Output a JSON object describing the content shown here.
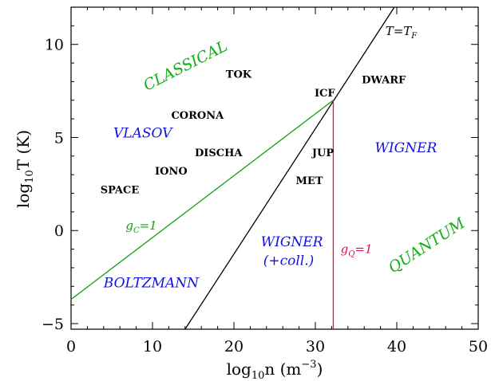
{
  "chart_data": {
    "type": "line",
    "title": "",
    "xlabel": "log",
    "xlabel_sub": "10",
    "xlabel_tail": "n (m",
    "xlabel_sup": "−3",
    "xlabel_close": ")",
    "ylabel": "log",
    "ylabel_sub": "10",
    "ylabel_tail": "T (K)",
    "xlim": [
      0,
      50
    ],
    "ylim": [
      -5.3,
      12
    ],
    "xticks": [
      0,
      10,
      20,
      30,
      40,
      50
    ],
    "yticks": [
      -5,
      0,
      5,
      10
    ],
    "colors": {
      "degeneracy": "#000000",
      "classical_coupling": "#10a010",
      "quantum_coupling": "#e0104a",
      "blue_text": "#1010e0",
      "green_text": "#10b010"
    },
    "series": [
      {
        "key": "degeneracy",
        "name": "",
        "x": [
          14.0,
          39.7
        ],
        "y": [
          -5.3,
          12.0
        ]
      },
      {
        "key": "classical_coupling",
        "name": "",
        "x": [
          0.0,
          32.2
        ],
        "y": [
          -3.7,
          7.0
        ]
      },
      {
        "key": "quantum_coupling",
        "name": "",
        "x": [
          32.2,
          32.2
        ],
        "y": [
          7.0,
          -5.3
        ]
      }
    ],
    "curve_labels": {
      "tf": {
        "main": "T=T",
        "sub": "F",
        "x": 38.6,
        "y": 10.5,
        "color": "#000000"
      },
      "gc": {
        "main": "g",
        "sub": "C",
        "tail": "=1",
        "x": 6.7,
        "y": 0.05,
        "color": "#10a010"
      },
      "gq": {
        "main": "g",
        "sub": "Q",
        "tail": "=1",
        "x": 33.1,
        "y": -1.2,
        "color": "#e0104a"
      }
    },
    "annotations": [
      {
        "text": "TOK",
        "x": 19.0,
        "y": 8.2,
        "style": "black"
      },
      {
        "text": "ICF",
        "x": 29.9,
        "y": 7.2,
        "style": "black"
      },
      {
        "text": "DWARF",
        "x": 35.7,
        "y": 7.9,
        "style": "black"
      },
      {
        "text": "CORONA",
        "x": 12.3,
        "y": 6.0,
        "style": "black"
      },
      {
        "text": "DISCHA",
        "x": 15.2,
        "y": 4.0,
        "style": "black"
      },
      {
        "text": "JUP",
        "x": 29.6,
        "y": 4.0,
        "style": "black"
      },
      {
        "text": "IONO",
        "x": 10.3,
        "y": 3.0,
        "style": "black"
      },
      {
        "text": "MET",
        "x": 27.6,
        "y": 2.5,
        "style": "black"
      },
      {
        "text": "SPACE",
        "x": 3.6,
        "y": 2.0,
        "style": "black"
      },
      {
        "text": "VLASOV",
        "x": 5.2,
        "y": 5.0,
        "style": "blue"
      },
      {
        "text": "WIGNER",
        "x": 37.3,
        "y": 4.2,
        "style": "blue"
      },
      {
        "text": "WIGNER",
        "x": 23.3,
        "y": -0.85,
        "style": "blue"
      },
      {
        "text": "(+coll.)",
        "x": 23.6,
        "y": -1.85,
        "style": "blue-small"
      },
      {
        "text": "BOLTZMANN",
        "x": 4.0,
        "y": -3.05,
        "style": "blue"
      }
    ],
    "rotated_annotations": [
      {
        "text": "CLASSICAL",
        "x": 9.3,
        "y": 7.5,
        "angle": -27,
        "style": "green"
      },
      {
        "text": "QUANTUM",
        "x": 39.5,
        "y": -2.3,
        "angle": -33,
        "style": "green"
      }
    ],
    "grid": false,
    "legend": "none"
  }
}
